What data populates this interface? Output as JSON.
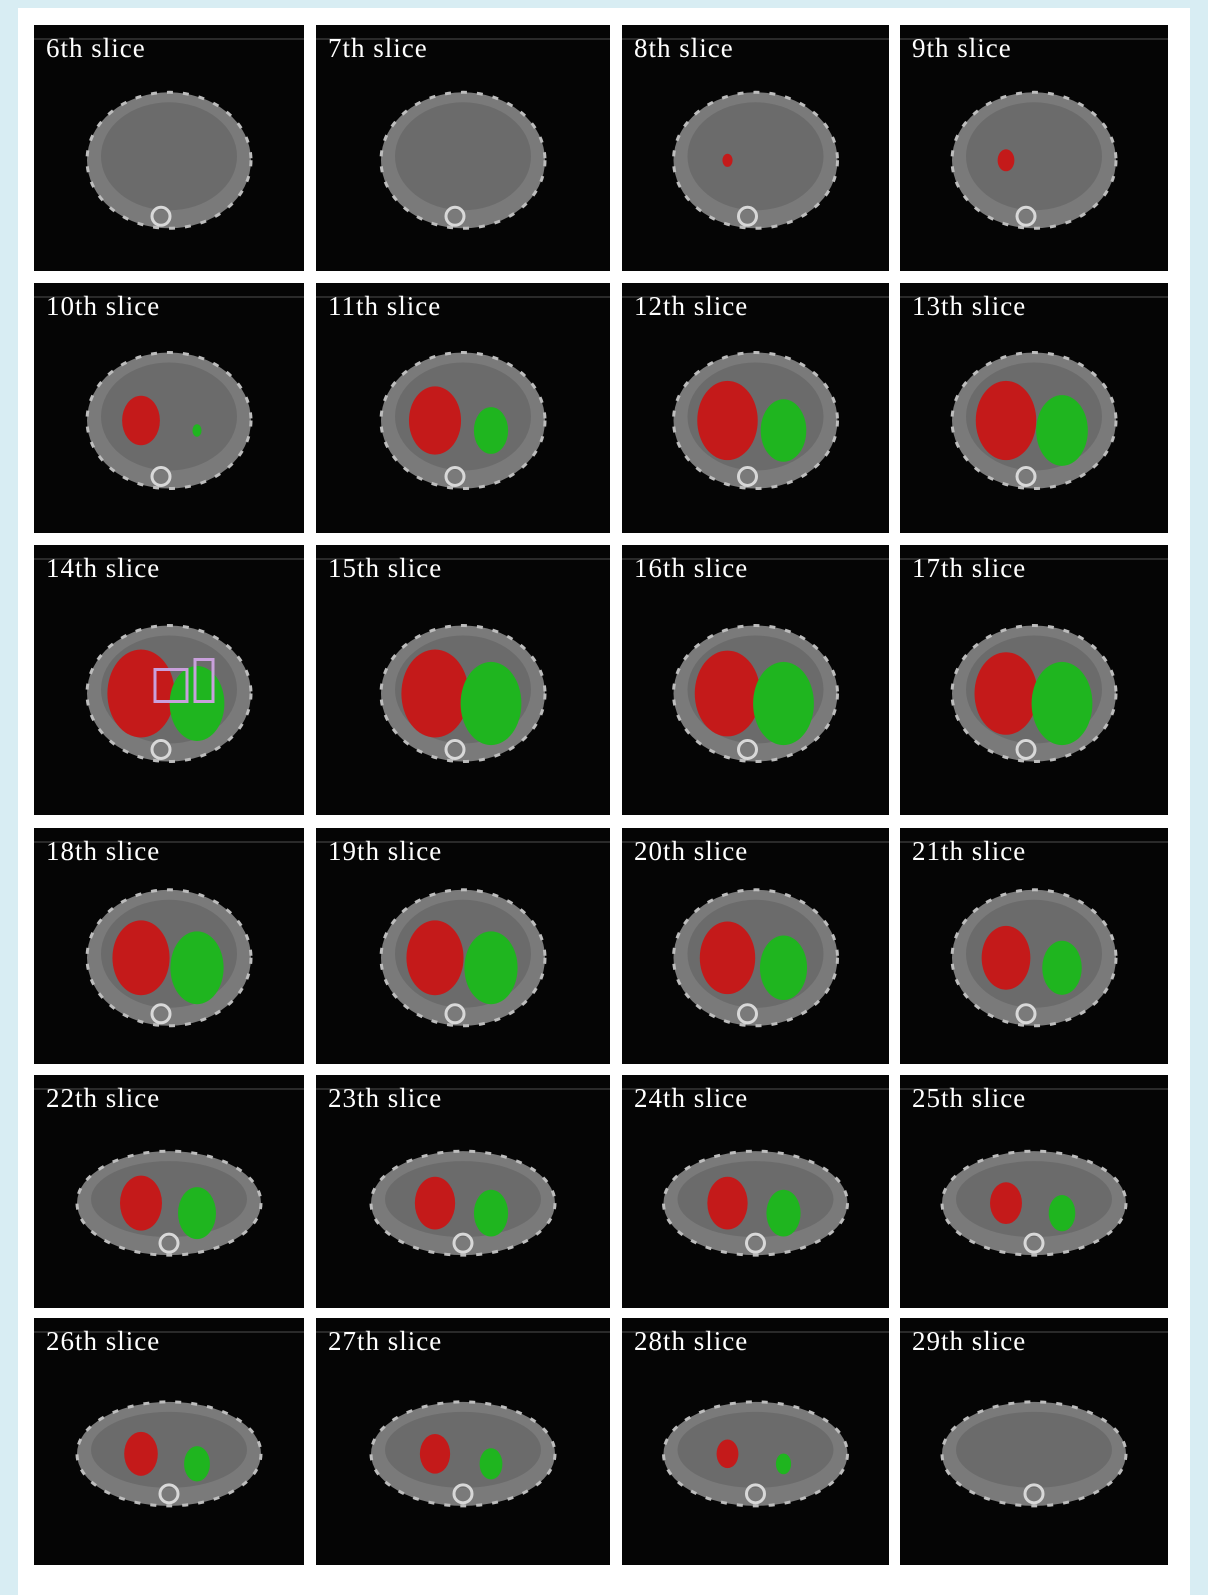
{
  "slices": [
    "6th slice",
    "7th slice",
    "8th slice",
    "9th slice",
    "10th slice",
    "11th slice",
    "12th slice",
    "13th slice",
    "14th slice",
    "15th slice",
    "16th slice",
    "17th slice",
    "18th slice",
    "19th slice",
    "20th slice",
    "21th slice",
    "22th slice",
    "23th slice",
    "24th slice",
    "25th slice",
    "26th slice",
    "27th slice",
    "28th slice",
    "29th slice"
  ]
}
